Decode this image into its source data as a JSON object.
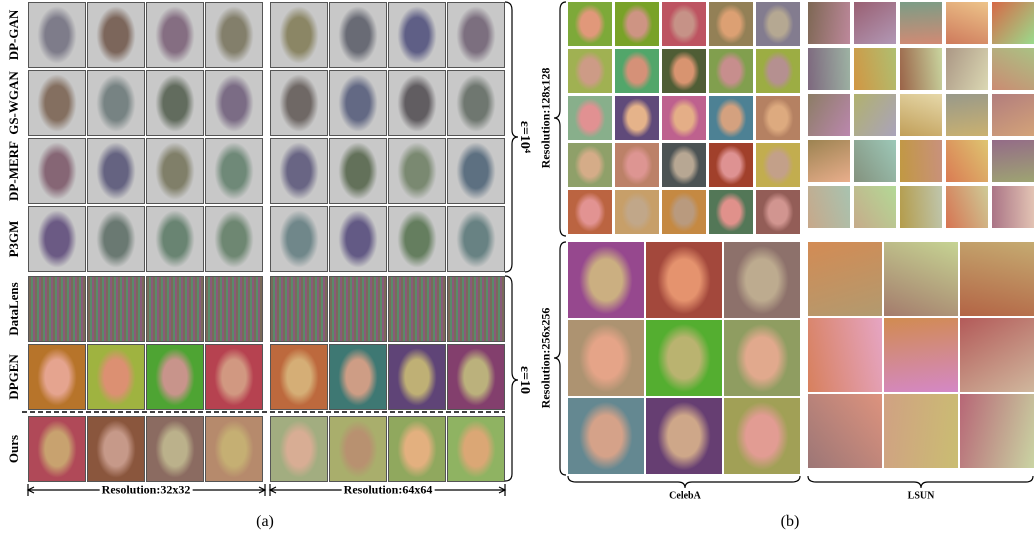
{
  "panel_a": {
    "row_labels": [
      "DP-GAN",
      "GS-WGAN",
      "DP-MERF",
      "P3GM",
      "DataLens",
      "DPGEN",
      "Ours"
    ],
    "resolution_labels": [
      "Resolution:32x32",
      "Resolution:64x64"
    ],
    "epsilon_labels": [
      "ε=10⁴",
      "ε=10"
    ],
    "caption": "(a)"
  },
  "panel_b": {
    "resolution_labels": [
      "Resolution:128x128",
      "Resolution:256x256"
    ],
    "dataset_labels": [
      "CelebA",
      "LSUN"
    ],
    "caption": "(b)"
  }
}
